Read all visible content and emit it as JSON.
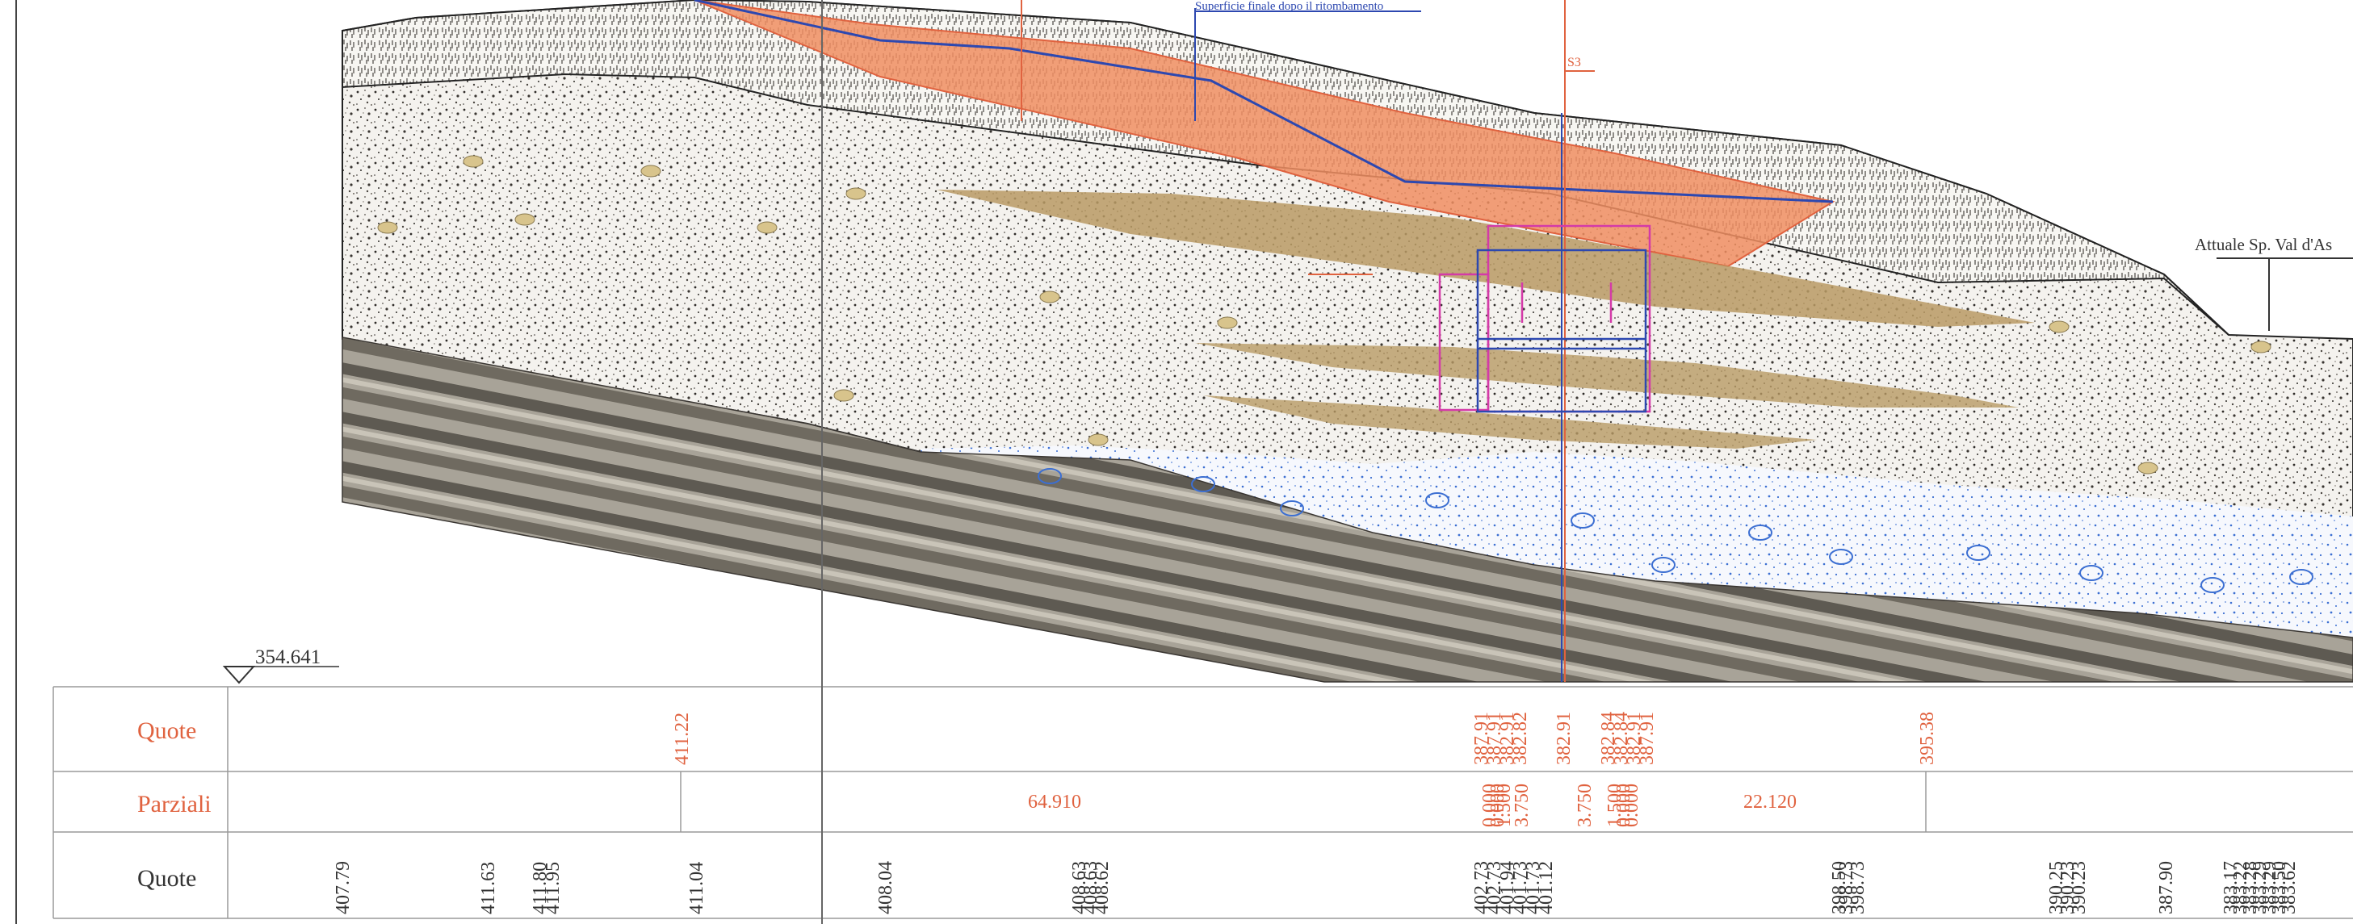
{
  "annotations": {
    "final_surface": "Superficie finale dopo il ritombamento",
    "section_marker": "S3",
    "road_label": "Attuale Sp. Val d'As",
    "datum": "354.641"
  },
  "table": {
    "row_labels": {
      "quote_top": "Quote",
      "parziali": "Parziali",
      "quote_bottom": "Quote"
    },
    "quote_top_values": [
      "411.22",
      "387.91",
      "387.91",
      "382.91",
      "382.82",
      "382.91",
      "382.84",
      "382.84",
      "382.91",
      "387.91",
      "395.38"
    ],
    "parziali_values": [
      "64.910",
      "0.000",
      "0.000",
      "1.500",
      "3.750",
      "3.750",
      "1.500",
      "0.000",
      "0.000",
      "22.120"
    ],
    "quote_bottom_values": [
      "407.79",
      "411.63",
      "411.80",
      "411.95",
      "411.04",
      "408.04",
      "408.63",
      "408.63",
      "408.62",
      "402.73",
      "402.73",
      "401.94",
      "401.73",
      "401.73",
      "401.12",
      "398.50",
      "398.73",
      "398.73",
      "390.25",
      "390.23",
      "390.23",
      "387.90",
      "383.17",
      "383.22",
      "383.28",
      "383.29",
      "383.29",
      "383.50",
      "383.62"
    ]
  },
  "colors": {
    "fill_orange": "#f08e62",
    "sand_lens": "#b89a64",
    "bedrock": "#6f6a60",
    "gravel_blue": "#3c6fd2",
    "surface_blue": "#2d48b0",
    "table_red": "#e0623f",
    "magenta": "#d43aa8"
  }
}
